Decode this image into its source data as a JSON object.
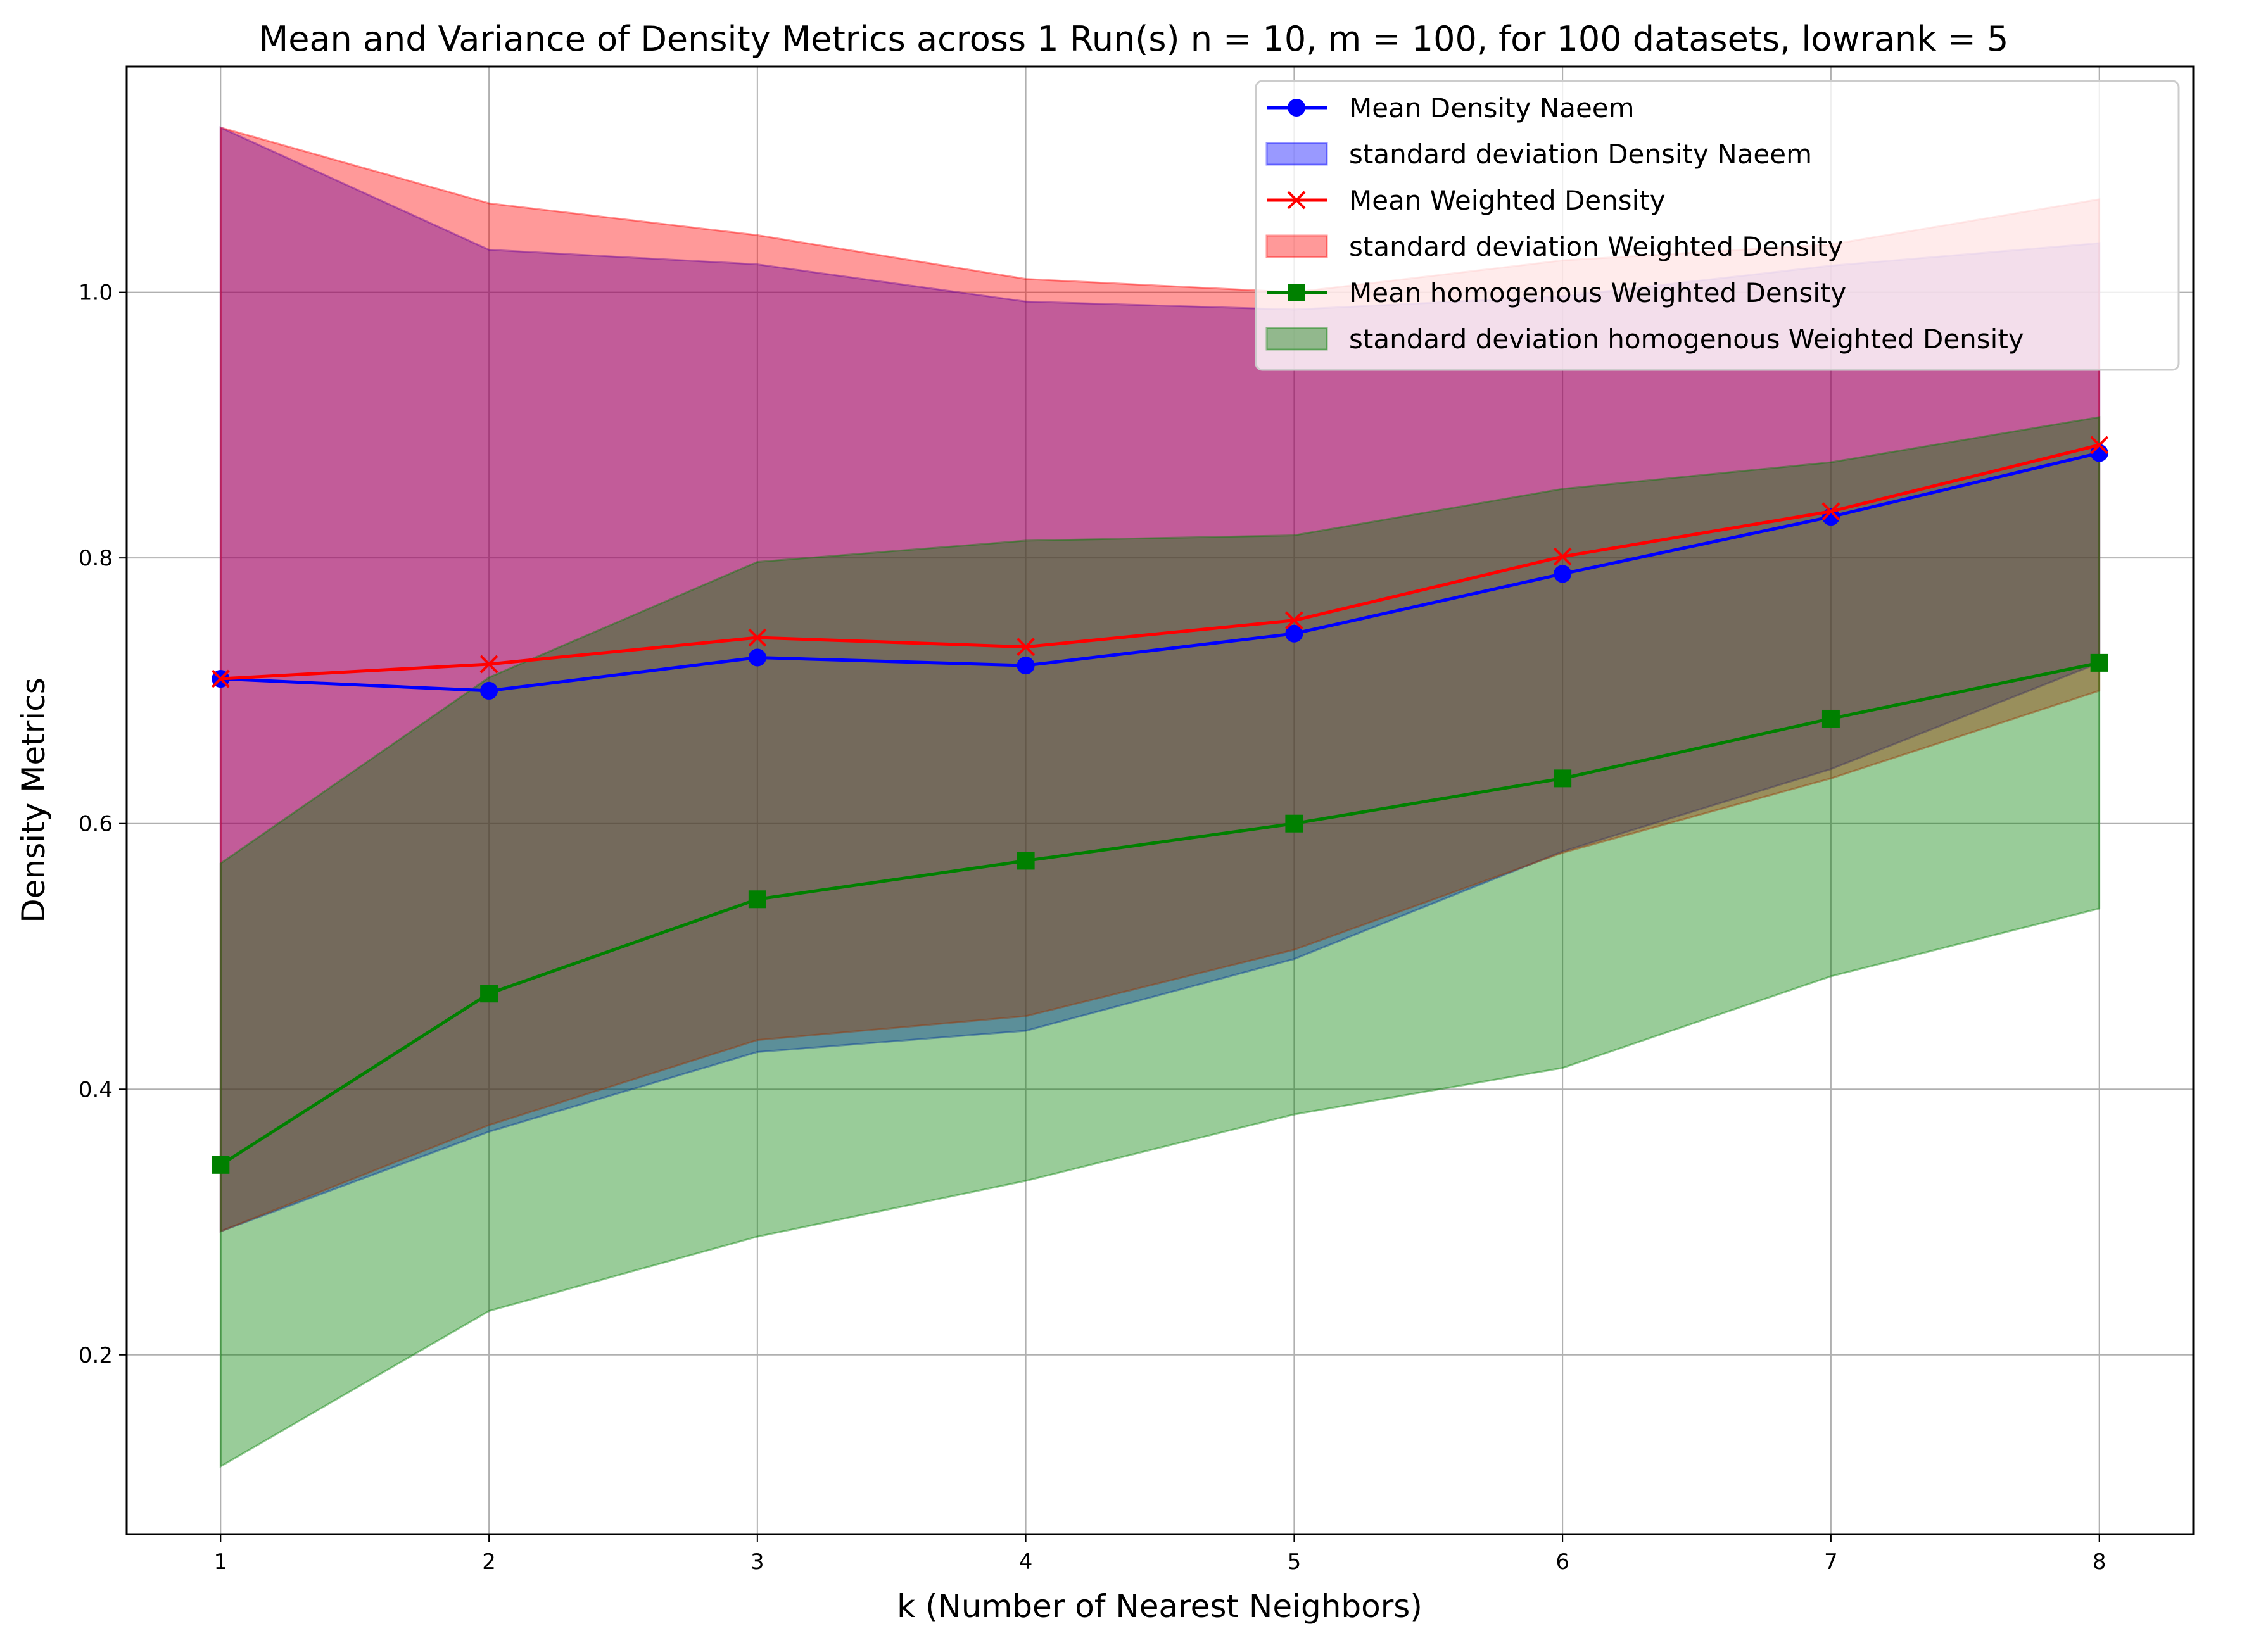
{
  "chart_data": {
    "type": "line",
    "title": "Mean and Variance of Density Metrics across 1 Run(s) n  = 10, m  = 100, for 100 datasets, lowrank = 5",
    "xlabel": "k (Number of Nearest Neighbors)",
    "ylabel": "Density Metrics",
    "x": [
      1,
      2,
      3,
      4,
      5,
      6,
      7,
      8
    ],
    "xlim": [
      0.65,
      8.35
    ],
    "ylim": [
      0.065,
      1.17
    ],
    "xticks": [
      "1",
      "2",
      "3",
      "4",
      "5",
      "6",
      "7",
      "8"
    ],
    "yticks": [
      0.2,
      0.4,
      0.6,
      0.8,
      1.0
    ],
    "ytick_labels": [
      "0.2",
      "0.4",
      "0.6",
      "0.8",
      "1.0"
    ],
    "grid": true,
    "legend_position": "upper right",
    "series": [
      {
        "name": "Mean Density Naeem",
        "kind": "mean",
        "color": "#0000ff",
        "marker": "circle",
        "values": [
          0.709,
          0.7,
          0.725,
          0.719,
          0.743,
          0.788,
          0.831,
          0.879
        ]
      },
      {
        "name": "Mean Weighted Density",
        "kind": "mean",
        "color": "#ff0000",
        "marker": "x",
        "values": [
          0.709,
          0.72,
          0.74,
          0.733,
          0.753,
          0.801,
          0.835,
          0.885
        ]
      },
      {
        "name": "Mean homogenous Weighted Density",
        "kind": "mean",
        "color": "#008000",
        "marker": "square",
        "values": [
          0.343,
          0.472,
          0.543,
          0.572,
          0.6,
          0.634,
          0.679,
          0.721
        ]
      }
    ],
    "bands": [
      {
        "name": "standard deviation Density Naeem",
        "color": "#0000ff",
        "opacity": 0.4,
        "upper": [
          1.124,
          1.032,
          1.021,
          0.993,
          0.987,
          0.997,
          1.02,
          1.037
        ],
        "lower": [
          0.293,
          0.368,
          0.428,
          0.444,
          0.498,
          0.579,
          0.641,
          0.721
        ]
      },
      {
        "name": "standard deviation Weighted Density",
        "color": "#ff0000",
        "opacity": 0.4,
        "upper": [
          1.124,
          1.067,
          1.043,
          1.01,
          1.0,
          1.024,
          1.036,
          1.07
        ],
        "lower": [
          0.293,
          0.373,
          0.437,
          0.455,
          0.505,
          0.578,
          0.634,
          0.7
        ]
      },
      {
        "name": "standard deviation homogenous Weighted Density",
        "color": "#008000",
        "opacity": 0.4,
        "upper": [
          0.57,
          0.71,
          0.797,
          0.813,
          0.817,
          0.852,
          0.872,
          0.906
        ],
        "lower": [
          0.116,
          0.233,
          0.289,
          0.331,
          0.381,
          0.416,
          0.485,
          0.536
        ]
      }
    ],
    "legend": [
      {
        "label": "Mean Density Naeem",
        "kind": "line",
        "color": "#0000ff",
        "marker": "circle"
      },
      {
        "label": "standard deviation Density Naeem",
        "kind": "patch",
        "color": "#0000ff"
      },
      {
        "label": "Mean Weighted Density",
        "kind": "line",
        "color": "#ff0000",
        "marker": "x"
      },
      {
        "label": "standard deviation Weighted Density",
        "kind": "patch",
        "color": "#ff0000"
      },
      {
        "label": "Mean homogenous Weighted Density",
        "kind": "line",
        "color": "#008000",
        "marker": "square"
      },
      {
        "label": "standard deviation homogenous Weighted Density",
        "kind": "patch",
        "color": "#008000"
      }
    ]
  }
}
